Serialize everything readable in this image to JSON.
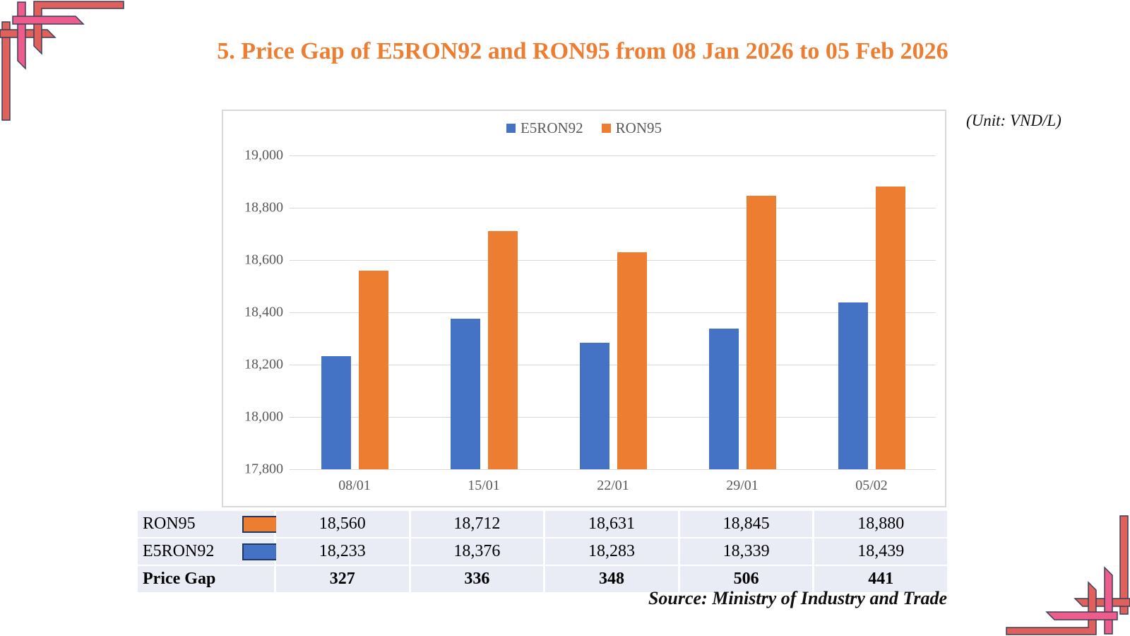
{
  "title": "5. Price Gap of E5RON92 and RON95 from 08 Jan 2026 to 05 Feb 2026",
  "unit_note": "(Unit: VND/L)",
  "source_note": "Source: Ministry of Industry and Trade",
  "colors": {
    "e5ron92": "#4472c4",
    "ron95": "#ed7d31",
    "title": "#ed7d31",
    "axis_text": "#595959",
    "gridline": "#d9d9d9",
    "table_bg": "#e9ebf5",
    "swatch_border": "#1f3864",
    "corner_coral": "#e0605c",
    "corner_pink": "#ee5c8b"
  },
  "chart_data": {
    "type": "bar",
    "title": "",
    "categories": [
      "08/01",
      "15/01",
      "22/01",
      "29/01",
      "05/02"
    ],
    "series": [
      {
        "name": "E5RON92",
        "color_key": "e5ron92",
        "values": [
          18233,
          18376,
          18283,
          18339,
          18439
        ]
      },
      {
        "name": "RON95",
        "color_key": "ron95",
        "values": [
          18560,
          18712,
          18631,
          18845,
          18880
        ]
      }
    ],
    "legend": [
      "E5RON92",
      "RON95"
    ],
    "legend_position": "top",
    "grid": true,
    "xlabel": "",
    "ylabel": "",
    "ylim": [
      17800,
      19000
    ],
    "ytick_step": 200,
    "ytick_labels": [
      "17,800",
      "18,000",
      "18,200",
      "18,400",
      "18,600",
      "18,800",
      "19,000"
    ]
  },
  "table": {
    "rows": [
      {
        "label": "RON95",
        "swatch": "ron95",
        "bold": false,
        "values": [
          "18,560",
          "18,712",
          "18,631",
          "18,845",
          "18,880"
        ]
      },
      {
        "label": "E5RON92",
        "swatch": "e5ron92",
        "bold": false,
        "values": [
          "18,233",
          "18,376",
          "18,283",
          "18,339",
          "18,439"
        ]
      },
      {
        "label": "Price Gap",
        "swatch": null,
        "bold": true,
        "values": [
          "327",
          "336",
          "348",
          "506",
          "441"
        ]
      }
    ]
  }
}
